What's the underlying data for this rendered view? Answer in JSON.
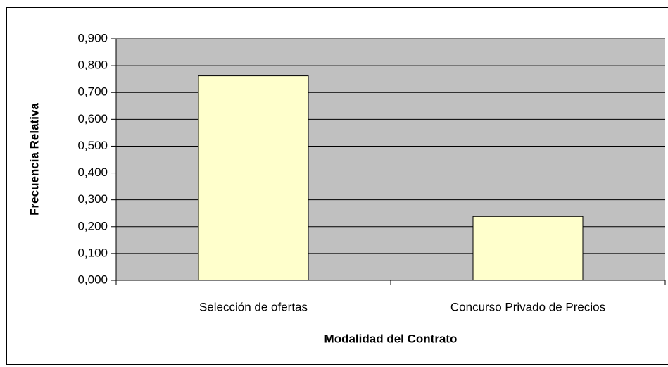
{
  "chart_data": {
    "type": "bar",
    "categories": [
      "Selección de ofertas",
      "Concurso Privado de Precios"
    ],
    "values": [
      0.762,
      0.238
    ],
    "color": "#ffffcc",
    "plot_background": "#c0c0c0",
    "x_label": "Modalidad del Contrato",
    "y_label": "Frecuencia Relativa",
    "ylim": [
      0,
      0.9
    ],
    "yticks": [
      {
        "value": 0,
        "label": "0,000"
      },
      {
        "value": 0.1,
        "label": "0,100"
      },
      {
        "value": 0.2,
        "label": "0,200"
      },
      {
        "value": 0.3,
        "label": "0,300"
      },
      {
        "value": 0.4,
        "label": "0,400"
      },
      {
        "value": 0.5,
        "label": "0,500"
      },
      {
        "value": 0.6,
        "label": "0,600"
      },
      {
        "value": 0.7,
        "label": "0,700"
      },
      {
        "value": 0.8,
        "label": "0,800"
      },
      {
        "value": 0.9,
        "label": "0,900"
      }
    ],
    "grid": true
  }
}
